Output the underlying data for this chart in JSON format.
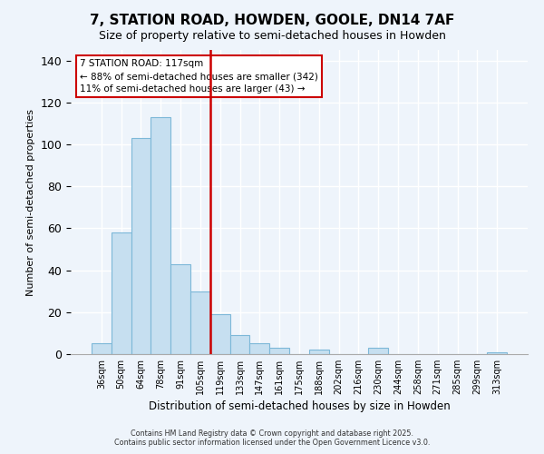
{
  "title": "7, STATION ROAD, HOWDEN, GOOLE, DN14 7AF",
  "subtitle": "Size of property relative to semi-detached houses in Howden",
  "xlabel": "Distribution of semi-detached houses by size in Howden",
  "ylabel": "Number of semi-detached properties",
  "bin_labels": [
    "36sqm",
    "50sqm",
    "64sqm",
    "78sqm",
    "91sqm",
    "105sqm",
    "119sqm",
    "133sqm",
    "147sqm",
    "161sqm",
    "175sqm",
    "188sqm",
    "202sqm",
    "216sqm",
    "230sqm",
    "244sqm",
    "258sqm",
    "271sqm",
    "285sqm",
    "299sqm",
    "313sqm"
  ],
  "bar_values": [
    5,
    58,
    103,
    113,
    43,
    30,
    19,
    9,
    5,
    3,
    0,
    2,
    0,
    0,
    3,
    0,
    0,
    0,
    0,
    0,
    1
  ],
  "bar_color": "#c6dff0",
  "bar_edge_color": "#7db8d8",
  "vline_x_index": 6,
  "vline_color": "#cc0000",
  "ylim": [
    0,
    145
  ],
  "yticks": [
    0,
    20,
    40,
    60,
    80,
    100,
    120,
    140
  ],
  "annotation_title": "7 STATION ROAD: 117sqm",
  "annotation_line1": "← 88% of semi-detached houses are smaller (342)",
  "annotation_line2": "11% of semi-detached houses are larger (43) →",
  "footer1": "Contains HM Land Registry data © Crown copyright and database right 2025.",
  "footer2": "Contains public sector information licensed under the Open Government Licence v3.0.",
  "background_color": "#eef4fb",
  "grid_color": "#ffffff",
  "title_fontsize": 11,
  "subtitle_fontsize": 9
}
